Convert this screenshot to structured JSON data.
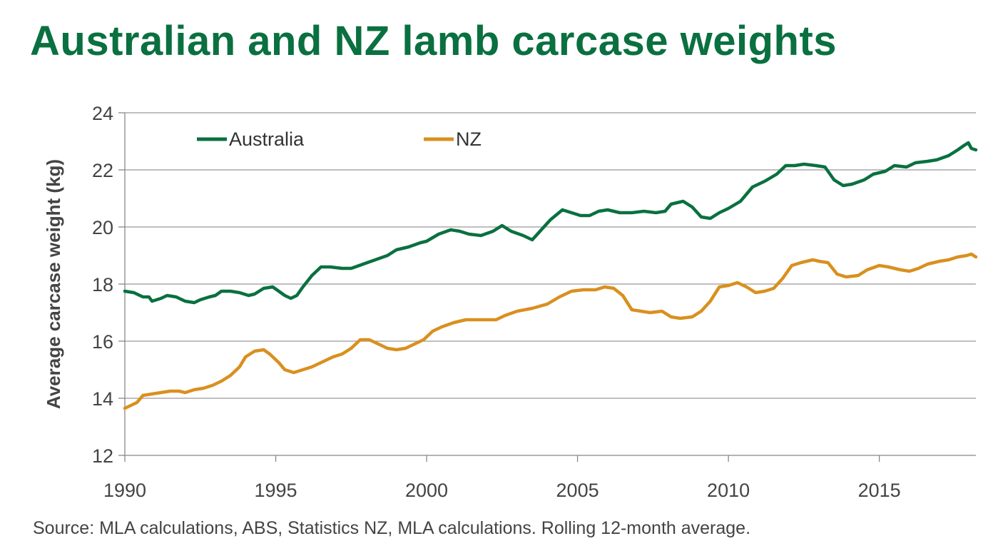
{
  "title": "Australian and NZ lamb carcase weights",
  "source": "Source: MLA calculations, ABS, Statistics NZ, MLA calculations. Rolling 12-month average.",
  "colors": {
    "title": "#0a7040",
    "australia": "#0a7040",
    "nz": "#d9901f",
    "grid": "#999999",
    "axis": "#888888",
    "text": "#444444"
  },
  "chart_data": {
    "type": "line",
    "title": "Australian and NZ lamb carcase weights",
    "xlabel": "",
    "ylabel": "Average carcase weight (kg)",
    "xlim": [
      1990,
      2018.2
    ],
    "ylim": [
      12,
      24
    ],
    "y_ticks": [
      "12",
      "14",
      "16",
      "18",
      "20",
      "22",
      "24"
    ],
    "x_ticks": [
      "1990",
      "1995",
      "2000",
      "2005",
      "2010",
      "2015"
    ],
    "grid": true,
    "legend_position": "top-left",
    "series": [
      {
        "name": "Australia",
        "color": "#0a7040",
        "points": [
          [
            1990.0,
            17.75
          ],
          [
            1990.3,
            17.7
          ],
          [
            1990.6,
            17.55
          ],
          [
            1990.8,
            17.55
          ],
          [
            1990.9,
            17.4
          ],
          [
            1991.2,
            17.5
          ],
          [
            1991.4,
            17.6
          ],
          [
            1991.7,
            17.55
          ],
          [
            1992.0,
            17.4
          ],
          [
            1992.3,
            17.35
          ],
          [
            1992.5,
            17.45
          ],
          [
            1992.8,
            17.55
          ],
          [
            1993.0,
            17.6
          ],
          [
            1993.2,
            17.75
          ],
          [
            1993.5,
            17.75
          ],
          [
            1993.8,
            17.7
          ],
          [
            1994.1,
            17.6
          ],
          [
            1994.3,
            17.65
          ],
          [
            1994.6,
            17.85
          ],
          [
            1994.9,
            17.9
          ],
          [
            1995.1,
            17.75
          ],
          [
            1995.3,
            17.6
          ],
          [
            1995.5,
            17.5
          ],
          [
            1995.7,
            17.6
          ],
          [
            1995.9,
            17.9
          ],
          [
            1996.2,
            18.3
          ],
          [
            1996.5,
            18.6
          ],
          [
            1996.8,
            18.6
          ],
          [
            1997.2,
            18.55
          ],
          [
            1997.5,
            18.55
          ],
          [
            1997.9,
            18.7
          ],
          [
            1998.3,
            18.85
          ],
          [
            1998.7,
            19.0
          ],
          [
            1999.0,
            19.2
          ],
          [
            1999.4,
            19.3
          ],
          [
            1999.8,
            19.45
          ],
          [
            2000.0,
            19.5
          ],
          [
            2000.4,
            19.75
          ],
          [
            2000.8,
            19.9
          ],
          [
            2001.1,
            19.85
          ],
          [
            2001.4,
            19.75
          ],
          [
            2001.8,
            19.7
          ],
          [
            2002.2,
            19.85
          ],
          [
            2002.5,
            20.05
          ],
          [
            2002.8,
            19.85
          ],
          [
            2003.2,
            19.7
          ],
          [
            2003.5,
            19.55
          ],
          [
            2003.8,
            19.9
          ],
          [
            2004.1,
            20.25
          ],
          [
            2004.5,
            20.6
          ],
          [
            2004.8,
            20.5
          ],
          [
            2005.1,
            20.4
          ],
          [
            2005.4,
            20.4
          ],
          [
            2005.7,
            20.55
          ],
          [
            2006.0,
            20.6
          ],
          [
            2006.4,
            20.5
          ],
          [
            2006.8,
            20.5
          ],
          [
            2007.2,
            20.55
          ],
          [
            2007.6,
            20.5
          ],
          [
            2007.9,
            20.55
          ],
          [
            2008.1,
            20.8
          ],
          [
            2008.5,
            20.9
          ],
          [
            2008.8,
            20.7
          ],
          [
            2009.1,
            20.35
          ],
          [
            2009.4,
            20.3
          ],
          [
            2009.7,
            20.5
          ],
          [
            2010.0,
            20.65
          ],
          [
            2010.4,
            20.9
          ],
          [
            2010.8,
            21.4
          ],
          [
            2011.2,
            21.6
          ],
          [
            2011.6,
            21.85
          ],
          [
            2011.9,
            22.15
          ],
          [
            2012.2,
            22.15
          ],
          [
            2012.5,
            22.2
          ],
          [
            2012.9,
            22.15
          ],
          [
            2013.2,
            22.1
          ],
          [
            2013.5,
            21.65
          ],
          [
            2013.8,
            21.45
          ],
          [
            2014.1,
            21.5
          ],
          [
            2014.5,
            21.65
          ],
          [
            2014.8,
            21.85
          ],
          [
            2015.2,
            21.95
          ],
          [
            2015.5,
            22.15
          ],
          [
            2015.9,
            22.1
          ],
          [
            2016.2,
            22.25
          ],
          [
            2016.6,
            22.3
          ],
          [
            2016.9,
            22.35
          ],
          [
            2017.3,
            22.5
          ],
          [
            2017.6,
            22.7
          ],
          [
            2017.8,
            22.85
          ],
          [
            2017.95,
            22.95
          ],
          [
            2018.05,
            22.75
          ],
          [
            2018.2,
            22.7
          ]
        ]
      },
      {
        "name": "NZ",
        "color": "#d9901f",
        "points": [
          [
            1990.0,
            13.65
          ],
          [
            1990.2,
            13.75
          ],
          [
            1990.4,
            13.85
          ],
          [
            1990.6,
            14.1
          ],
          [
            1990.9,
            14.15
          ],
          [
            1991.2,
            14.2
          ],
          [
            1991.5,
            14.25
          ],
          [
            1991.8,
            14.25
          ],
          [
            1992.0,
            14.2
          ],
          [
            1992.3,
            14.3
          ],
          [
            1992.6,
            14.35
          ],
          [
            1992.9,
            14.45
          ],
          [
            1993.2,
            14.6
          ],
          [
            1993.5,
            14.8
          ],
          [
            1993.8,
            15.1
          ],
          [
            1994.0,
            15.45
          ],
          [
            1994.3,
            15.65
          ],
          [
            1994.6,
            15.7
          ],
          [
            1994.8,
            15.55
          ],
          [
            1995.1,
            15.25
          ],
          [
            1995.3,
            15.0
          ],
          [
            1995.6,
            14.9
          ],
          [
            1995.9,
            15.0
          ],
          [
            1996.2,
            15.1
          ],
          [
            1996.5,
            15.25
          ],
          [
            1996.9,
            15.45
          ],
          [
            1997.2,
            15.55
          ],
          [
            1997.5,
            15.75
          ],
          [
            1997.8,
            16.05
          ],
          [
            1998.1,
            16.05
          ],
          [
            1998.4,
            15.9
          ],
          [
            1998.7,
            15.75
          ],
          [
            1999.0,
            15.7
          ],
          [
            1999.3,
            15.75
          ],
          [
            1999.6,
            15.9
          ],
          [
            1999.9,
            16.05
          ],
          [
            2000.2,
            16.35
          ],
          [
            2000.5,
            16.5
          ],
          [
            2000.9,
            16.65
          ],
          [
            2001.3,
            16.75
          ],
          [
            2001.7,
            16.75
          ],
          [
            2002.0,
            16.75
          ],
          [
            2002.3,
            16.75
          ],
          [
            2002.6,
            16.9
          ],
          [
            2003.0,
            17.05
          ],
          [
            2003.5,
            17.15
          ],
          [
            2004.0,
            17.3
          ],
          [
            2004.4,
            17.55
          ],
          [
            2004.8,
            17.75
          ],
          [
            2005.2,
            17.8
          ],
          [
            2005.6,
            17.8
          ],
          [
            2005.9,
            17.9
          ],
          [
            2006.2,
            17.85
          ],
          [
            2006.5,
            17.6
          ],
          [
            2006.8,
            17.1
          ],
          [
            2007.1,
            17.05
          ],
          [
            2007.4,
            17.0
          ],
          [
            2007.8,
            17.05
          ],
          [
            2008.1,
            16.85
          ],
          [
            2008.4,
            16.8
          ],
          [
            2008.8,
            16.85
          ],
          [
            2009.1,
            17.05
          ],
          [
            2009.4,
            17.4
          ],
          [
            2009.7,
            17.9
          ],
          [
            2010.0,
            17.95
          ],
          [
            2010.3,
            18.05
          ],
          [
            2010.6,
            17.9
          ],
          [
            2010.9,
            17.7
          ],
          [
            2011.2,
            17.75
          ],
          [
            2011.5,
            17.85
          ],
          [
            2011.8,
            18.2
          ],
          [
            2012.1,
            18.65
          ],
          [
            2012.4,
            18.75
          ],
          [
            2012.8,
            18.85
          ],
          [
            2013.0,
            18.8
          ],
          [
            2013.3,
            18.75
          ],
          [
            2013.6,
            18.35
          ],
          [
            2013.9,
            18.25
          ],
          [
            2014.3,
            18.3
          ],
          [
            2014.6,
            18.5
          ],
          [
            2015.0,
            18.65
          ],
          [
            2015.3,
            18.6
          ],
          [
            2015.7,
            18.5
          ],
          [
            2016.0,
            18.45
          ],
          [
            2016.3,
            18.55
          ],
          [
            2016.6,
            18.7
          ],
          [
            2017.0,
            18.8
          ],
          [
            2017.3,
            18.85
          ],
          [
            2017.6,
            18.95
          ],
          [
            2017.9,
            19.0
          ],
          [
            2018.05,
            19.05
          ],
          [
            2018.2,
            18.95
          ]
        ]
      }
    ]
  }
}
